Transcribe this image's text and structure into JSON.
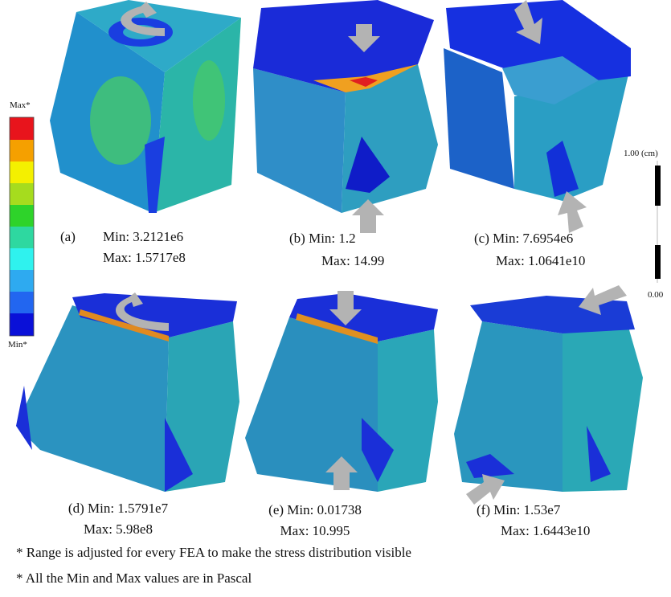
{
  "legend": {
    "max_label": "Max*",
    "min_label": "Min*"
  },
  "scale_bar": {
    "top_label": "1.00 (cm)",
    "bottom_label": "0.00"
  },
  "panels": [
    {
      "label": "(a)",
      "min": "Min: 3.2121e6",
      "max": "Max: 1.5717e8"
    },
    {
      "label": "(b)",
      "min": "Min: 1.2",
      "max": "Max: 14.99"
    },
    {
      "label": "(c)",
      "min": "Min: 7.6954e6",
      "max": "Max: 1.0641e10"
    },
    {
      "label": "(d)",
      "min": "Min: 1.5791e7",
      "max": "Max: 5.98e8"
    },
    {
      "label": "(e)",
      "min": "Min: 0.01738",
      "max": "Max: 10.995"
    },
    {
      "label": "(f)",
      "min": "Min: 1.53e7",
      "max": "Max: 1.6443e10"
    }
  ],
  "notes": [
    "* Range is adjusted for every FEA to make the stress distribution visible",
    "* All the Min and Max values are in Pascal"
  ]
}
